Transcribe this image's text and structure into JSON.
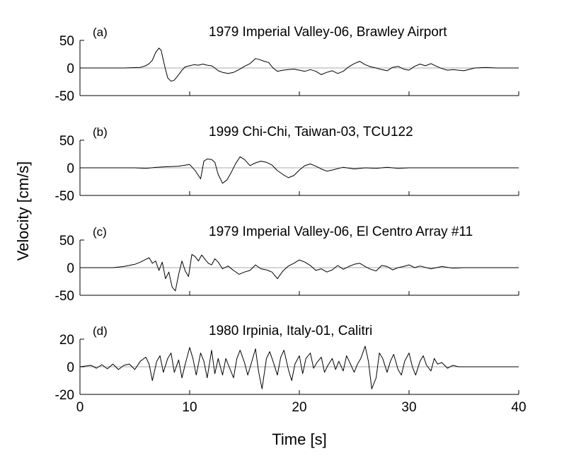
{
  "figure": {
    "xlabel": "Time [s]",
    "ylabel": "Velocity [cm/s]"
  },
  "chart_data": [
    {
      "type": "line",
      "panel_label": "(a)",
      "title": "1979 Imperial Valley-06, Brawley Airport",
      "xlim": [
        0,
        40
      ],
      "ylim": [
        -50,
        50
      ],
      "xticks": [
        0,
        10,
        20,
        30,
        40
      ],
      "yticks": [
        -50,
        0,
        50
      ],
      "ytick_labels": [
        "-50",
        "0",
        "50"
      ],
      "show_xtick_labels": false,
      "grid": false,
      "zero_line": true,
      "series": [
        {
          "x": [
            0,
            2,
            4,
            5.5,
            6.0,
            6.3,
            6.6,
            6.9,
            7.2,
            7.4,
            7.7,
            8.0,
            8.3,
            8.6,
            9.0,
            9.3,
            9.6,
            10.0,
            10.4,
            10.8,
            11.2,
            11.6,
            12.0,
            12.3,
            12.6,
            13.0,
            13.5,
            14.0,
            14.5,
            15.0,
            15.5,
            16.0,
            16.4,
            16.8,
            17.2,
            17.6,
            18.0,
            18.5,
            19.0,
            19.5,
            20.0,
            20.5,
            21.0,
            21.5,
            22.0,
            22.5,
            23.0,
            23.5,
            24.0,
            24.5,
            25.0,
            25.5,
            26.0,
            26.5,
            27.0,
            27.5,
            28.0,
            28.5,
            29.0,
            29.5,
            30.0,
            30.5,
            31.0,
            31.5,
            32.0,
            32.5,
            33.0,
            33.5,
            34.0,
            34.5,
            35.0,
            36.0,
            37.0,
            38.0,
            40.0
          ],
          "y": [
            0,
            0,
            0,
            1,
            4,
            8,
            14,
            28,
            36,
            32,
            5,
            -18,
            -24,
            -22,
            -12,
            -4,
            2,
            4,
            6,
            5,
            7,
            5,
            4,
            0,
            -5,
            -8,
            -10,
            -8,
            -3,
            3,
            8,
            17,
            15,
            12,
            10,
            0,
            -6,
            -4,
            -3,
            -2,
            -4,
            -6,
            -3,
            -6,
            -12,
            -8,
            -5,
            -10,
            -6,
            2,
            8,
            12,
            6,
            2,
            0,
            -3,
            -5,
            1,
            3,
            -2,
            -4,
            3,
            7,
            4,
            8,
            3,
            -1,
            -4,
            -3,
            -4,
            -5,
            0,
            1,
            0,
            0
          ]
        }
      ]
    },
    {
      "type": "line",
      "panel_label": "(b)",
      "title": "1999 Chi-Chi, Taiwan-03, TCU122",
      "xlim": [
        0,
        40
      ],
      "ylim": [
        -50,
        50
      ],
      "xticks": [
        0,
        10,
        20,
        30,
        40
      ],
      "yticks": [
        -50,
        0,
        50
      ],
      "ytick_labels": [
        "-50",
        "0",
        "50"
      ],
      "show_xtick_labels": false,
      "grid": false,
      "zero_line": true,
      "series": [
        {
          "x": [
            0,
            5,
            6,
            7,
            8,
            9,
            10,
            10.5,
            11,
            11.3,
            11.6,
            12.0,
            12.3,
            12.6,
            13.0,
            13.4,
            13.8,
            14.2,
            14.6,
            15.0,
            15.5,
            16.0,
            16.5,
            17.0,
            17.5,
            18.0,
            18.5,
            19.0,
            19.5,
            20.0,
            20.5,
            21.0,
            21.5,
            22.0,
            22.5,
            23.0,
            24.0,
            25.0,
            26.0,
            27.0,
            28.0,
            29.0,
            30.0,
            32.0,
            34.0,
            36.0,
            38.0,
            40.0
          ],
          "y": [
            0,
            0,
            -1,
            1,
            2,
            3,
            6,
            -5,
            -20,
            12,
            16,
            15,
            10,
            -12,
            -28,
            -22,
            -8,
            8,
            20,
            15,
            4,
            9,
            12,
            10,
            5,
            -5,
            -12,
            -18,
            -14,
            -4,
            4,
            7,
            3,
            -2,
            -6,
            -4,
            1,
            -2,
            0,
            -1,
            1,
            -1,
            0,
            0,
            0,
            0,
            0,
            0
          ]
        }
      ]
    },
    {
      "type": "line",
      "panel_label": "(c)",
      "title": "1979 Imperial Valley-06, El Centro Array #11",
      "xlim": [
        0,
        40
      ],
      "ylim": [
        -50,
        50
      ],
      "xticks": [
        0,
        10,
        20,
        30,
        40
      ],
      "yticks": [
        -50,
        0,
        50
      ],
      "ytick_labels": [
        "-50",
        "0",
        "50"
      ],
      "show_xtick_labels": false,
      "grid": false,
      "zero_line": true,
      "series": [
        {
          "x": [
            0,
            3,
            4,
            5,
            5.5,
            6.0,
            6.3,
            6.6,
            6.9,
            7.2,
            7.5,
            7.8,
            8.1,
            8.4,
            8.7,
            9.0,
            9.3,
            9.6,
            9.9,
            10.2,
            10.5,
            10.8,
            11.1,
            11.4,
            11.7,
            12.0,
            12.3,
            12.6,
            13.0,
            13.5,
            14.0,
            14.5,
            15.0,
            15.5,
            16.0,
            16.5,
            17.0,
            17.5,
            18.0,
            18.5,
            19.0,
            19.5,
            20.0,
            20.5,
            21.0,
            21.5,
            22.0,
            22.5,
            23.0,
            23.5,
            24.0,
            24.5,
            25.0,
            25.5,
            26.0,
            26.5,
            27.0,
            27.5,
            28.0,
            28.5,
            29.0,
            29.5,
            30.0,
            30.5,
            31.0,
            32.0,
            33.0,
            34.0,
            35.0,
            36.0,
            40.0
          ],
          "y": [
            0,
            0,
            2,
            6,
            10,
            15,
            18,
            8,
            12,
            -5,
            10,
            -20,
            -8,
            -35,
            -42,
            -12,
            12,
            -6,
            -16,
            24,
            20,
            12,
            23,
            15,
            8,
            5,
            16,
            10,
            -2,
            3,
            -5,
            -12,
            -8,
            -5,
            5,
            -2,
            -4,
            -8,
            -20,
            -6,
            3,
            8,
            14,
            10,
            4,
            -5,
            -2,
            -8,
            -4,
            4,
            -3,
            2,
            6,
            8,
            2,
            -3,
            -6,
            4,
            2,
            -4,
            0,
            2,
            5,
            0,
            3,
            -2,
            2,
            -1,
            0,
            0,
            0
          ]
        }
      ]
    },
    {
      "type": "line",
      "panel_label": "(d)",
      "title": "1980 Irpinia, Italy-01, Calitri",
      "xlim": [
        0,
        40
      ],
      "ylim": [
        -20,
        20
      ],
      "xticks": [
        0,
        10,
        20,
        30,
        40
      ],
      "xtick_labels": [
        "0",
        "10",
        "20",
        "30",
        "40"
      ],
      "yticks": [
        -20,
        0,
        20
      ],
      "ytick_labels": [
        "-20",
        "0",
        "20"
      ],
      "show_xtick_labels": true,
      "grid": false,
      "zero_line": true,
      "series": [
        {
          "x": [
            0,
            0.5,
            1,
            1.5,
            2,
            2.5,
            3,
            3.5,
            4,
            4.5,
            5,
            5.5,
            6.0,
            6.3,
            6.6,
            7.0,
            7.3,
            7.6,
            8.0,
            8.3,
            8.6,
            9.0,
            9.3,
            9.6,
            10.0,
            10.3,
            10.6,
            11.0,
            11.3,
            11.6,
            12.0,
            12.3,
            12.6,
            13.0,
            13.3,
            13.6,
            14.0,
            14.3,
            14.6,
            15.0,
            15.3,
            15.6,
            16.0,
            16.3,
            16.6,
            17.0,
            17.3,
            17.6,
            18.0,
            18.3,
            18.6,
            19.0,
            19.3,
            19.6,
            20.0,
            20.3,
            20.6,
            21.0,
            21.3,
            21.6,
            22.0,
            22.3,
            22.6,
            23.0,
            23.3,
            23.6,
            24.0,
            24.3,
            24.6,
            25.0,
            25.3,
            25.6,
            26.0,
            26.3,
            26.6,
            27.0,
            27.3,
            27.6,
            28.0,
            28.3,
            28.6,
            29.0,
            29.3,
            29.6,
            30.0,
            30.3,
            30.6,
            31.0,
            31.3,
            31.6,
            32.0,
            32.3,
            32.6,
            33.0,
            33.5,
            34.0,
            34.5,
            35.0,
            36.0,
            40.0
          ],
          "y": [
            0,
            0.5,
            1,
            -1,
            1.5,
            -1.5,
            2,
            -2,
            1,
            2,
            -2,
            4,
            7,
            2,
            -10,
            4,
            8,
            -4,
            6,
            10,
            -4,
            5,
            -8,
            2,
            14,
            6,
            -6,
            10,
            4,
            -8,
            12,
            -5,
            6,
            -6,
            6,
            0,
            -8,
            6,
            12,
            3,
            -6,
            2,
            13,
            -4,
            -16,
            6,
            11,
            4,
            -6,
            7,
            12,
            -2,
            -10,
            2,
            8,
            -5,
            6,
            10,
            -1,
            3,
            7,
            -4,
            1,
            6,
            -2,
            4,
            -3,
            8,
            3,
            -4,
            2,
            6,
            15,
            4,
            -16,
            -8,
            10,
            6,
            -4,
            4,
            9,
            -2,
            -6,
            4,
            10,
            0,
            -6,
            4,
            8,
            1,
            -3,
            6,
            2,
            3,
            -1,
            1,
            0,
            0,
            0,
            0
          ]
        }
      ]
    }
  ]
}
